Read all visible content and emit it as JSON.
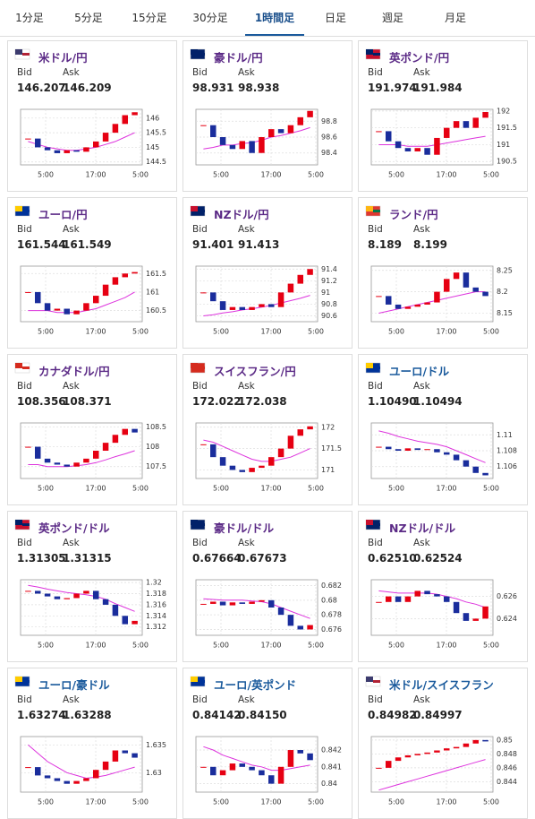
{
  "tabs": [
    "1分足",
    "5分足",
    "15分足",
    "30分足",
    "1時間足",
    "日足",
    "週足",
    "月足"
  ],
  "active_tab": 4,
  "bid_label": "Bid",
  "ask_label": "Ask",
  "chart_x_labels": [
    "5:00",
    "17:00",
    "5:00"
  ],
  "up_color": "#e60012",
  "down_color": "#1a2d9c",
  "ma_color": "#dd33dd",
  "cards": [
    {
      "pair": "米ドル/円",
      "title_color": "#5b2a86",
      "bid": "146.207",
      "ask": "146.209",
      "ylim": [
        144.4,
        146.3
      ],
      "yticks": [
        144.5,
        145,
        145.5,
        146
      ],
      "closes": [
        145.3,
        145.0,
        144.9,
        144.8,
        144.9,
        144.85,
        145.0,
        145.2,
        145.5,
        145.8,
        146.1,
        146.2
      ],
      "ma": [
        145.2,
        145.1,
        145.0,
        144.95,
        144.9,
        144.9,
        144.95,
        145.0,
        145.1,
        145.2,
        145.35,
        145.5
      ]
    },
    {
      "pair": "豪ドル/円",
      "title_color": "#5b2a86",
      "bid": "98.931",
      "ask": "98.938",
      "ylim": [
        98.25,
        98.95
      ],
      "yticks": [
        98.4,
        98.6,
        98.8
      ],
      "closes": [
        98.75,
        98.6,
        98.5,
        98.45,
        98.55,
        98.4,
        98.6,
        98.7,
        98.65,
        98.75,
        98.85,
        98.93
      ],
      "ma": [
        98.45,
        98.47,
        98.5,
        98.5,
        98.52,
        98.53,
        98.56,
        98.6,
        98.62,
        98.65,
        98.68,
        98.72
      ]
    },
    {
      "pair": "英ポンド/円",
      "title_color": "#5b2a86",
      "bid": "191.974",
      "ask": "191.984",
      "ylim": [
        190.4,
        192.05
      ],
      "yticks": [
        190.5,
        191,
        191.5,
        192
      ],
      "closes": [
        191.4,
        191.1,
        190.9,
        190.8,
        190.9,
        190.7,
        191.2,
        191.5,
        191.7,
        191.5,
        191.8,
        191.97
      ],
      "ma": [
        191.0,
        191.0,
        191.0,
        190.95,
        190.95,
        190.95,
        191.0,
        191.05,
        191.1,
        191.15,
        191.2,
        191.25
      ]
    },
    {
      "pair": "ユーロ/円",
      "title_color": "#5b2a86",
      "bid": "161.544",
      "ask": "161.549",
      "ylim": [
        160.2,
        161.7
      ],
      "yticks": [
        160.5,
        161,
        161.5
      ],
      "closes": [
        161.0,
        160.7,
        160.5,
        160.55,
        160.4,
        160.5,
        160.7,
        160.9,
        161.2,
        161.4,
        161.5,
        161.54
      ],
      "ma": [
        160.5,
        160.5,
        160.5,
        160.45,
        160.45,
        160.45,
        160.5,
        160.55,
        160.65,
        160.75,
        160.85,
        161.0
      ]
    },
    {
      "pair": "NZドル/円",
      "title_color": "#5b2a86",
      "bid": "91.401",
      "ask": "91.413",
      "ylim": [
        90.5,
        91.45
      ],
      "yticks": [
        90.6,
        90.8,
        91,
        91.2,
        91.4
      ],
      "closes": [
        91.0,
        90.85,
        90.7,
        90.75,
        90.7,
        90.75,
        90.8,
        90.75,
        91.0,
        91.15,
        91.3,
        91.4
      ],
      "ma": [
        90.6,
        90.62,
        90.65,
        90.67,
        90.7,
        90.72,
        90.75,
        90.78,
        90.82,
        90.86,
        90.9,
        90.95
      ]
    },
    {
      "pair": "ランド/円",
      "title_color": "#5b2a86",
      "bid": "8.189",
      "ask": "8.199",
      "ylim": [
        8.13,
        8.26
      ],
      "yticks": [
        8.15,
        8.2,
        8.25
      ],
      "closes": [
        8.19,
        8.17,
        8.16,
        8.165,
        8.17,
        8.175,
        8.2,
        8.23,
        8.245,
        8.21,
        8.2,
        8.19
      ],
      "ma": [
        8.15,
        8.155,
        8.16,
        8.165,
        8.17,
        8.175,
        8.18,
        8.185,
        8.19,
        8.195,
        8.2,
        8.2
      ]
    },
    {
      "pair": "カナダドル/円",
      "title_color": "#5b2a86",
      "bid": "108.356",
      "ask": "108.371",
      "ylim": [
        107.2,
        108.6
      ],
      "yticks": [
        107.5,
        108,
        108.5
      ],
      "closes": [
        108.0,
        107.7,
        107.6,
        107.55,
        107.5,
        107.6,
        107.7,
        107.9,
        108.1,
        108.3,
        108.45,
        108.36
      ],
      "ma": [
        107.55,
        107.55,
        107.5,
        107.5,
        107.5,
        107.52,
        107.55,
        107.6,
        107.67,
        107.75,
        107.82,
        107.9
      ]
    },
    {
      "pair": "スイスフラン/円",
      "title_color": "#5b2a86",
      "bid": "172.022",
      "ask": "172.038",
      "ylim": [
        170.8,
        172.1
      ],
      "yticks": [
        171,
        171.5,
        172
      ],
      "closes": [
        171.6,
        171.3,
        171.1,
        171.0,
        170.95,
        171.05,
        171.1,
        171.3,
        171.5,
        171.8,
        171.95,
        172.02
      ],
      "ma": [
        171.7,
        171.65,
        171.55,
        171.45,
        171.35,
        171.25,
        171.2,
        171.2,
        171.25,
        171.3,
        171.4,
        171.5
      ]
    },
    {
      "pair": "ユーロ/ドル",
      "title_color": "#1a5a9c",
      "bid": "1.10490",
      "ask": "1.10494",
      "ylim": [
        1.1045,
        1.1115
      ],
      "yticks": [
        1.106,
        1.108,
        1.11
      ],
      "closes": [
        1.1085,
        1.1082,
        1.108,
        1.1083,
        1.1081,
        1.1082,
        1.1078,
        1.1075,
        1.1068,
        1.106,
        1.1052,
        1.1049
      ],
      "ma": [
        1.1105,
        1.1102,
        1.1098,
        1.1095,
        1.1092,
        1.109,
        1.1088,
        1.1085,
        1.108,
        1.1075,
        1.107,
        1.1065
      ]
    },
    {
      "pair": "英ポンド/ドル",
      "title_color": "#5b2a86",
      "bid": "1.31305",
      "ask": "1.31315",
      "ylim": [
        1.3105,
        1.3205
      ],
      "yticks": [
        1.312,
        1.314,
        1.316,
        1.318,
        1.32
      ],
      "closes": [
        1.3185,
        1.318,
        1.3175,
        1.317,
        1.3172,
        1.318,
        1.3185,
        1.317,
        1.316,
        1.314,
        1.3125,
        1.3131
      ],
      "ma": [
        1.3195,
        1.3192,
        1.3188,
        1.3185,
        1.3182,
        1.318,
        1.3178,
        1.3175,
        1.317,
        1.3162,
        1.3155,
        1.3148
      ]
    },
    {
      "pair": "豪ドル/ドル",
      "title_color": "#5b2a86",
      "bid": "0.67664",
      "ask": "0.67673",
      "ylim": [
        0.6752,
        0.6828
      ],
      "yticks": [
        0.676,
        0.678,
        0.68,
        0.682
      ],
      "closes": [
        0.6795,
        0.6798,
        0.6793,
        0.6797,
        0.6795,
        0.6798,
        0.68,
        0.679,
        0.678,
        0.6765,
        0.676,
        0.6766
      ],
      "ma": [
        0.6802,
        0.6801,
        0.68,
        0.68,
        0.68,
        0.6799,
        0.6798,
        0.6795,
        0.679,
        0.6785,
        0.678,
        0.6775
      ]
    },
    {
      "pair": "NZドル/ドル",
      "title_color": "#5b2a86",
      "bid": "0.62510",
      "ask": "0.62524",
      "ylim": [
        0.6225,
        0.6275
      ],
      "yticks": [
        0.624,
        0.626
      ],
      "closes": [
        0.6255,
        0.626,
        0.6255,
        0.626,
        0.6265,
        0.6262,
        0.626,
        0.6255,
        0.6245,
        0.6238,
        0.624,
        0.6251
      ],
      "ma": [
        0.6265,
        0.6264,
        0.6263,
        0.6263,
        0.6263,
        0.6263,
        0.6262,
        0.626,
        0.6258,
        0.6255,
        0.6253,
        0.625
      ]
    },
    {
      "pair": "ユーロ/豪ドル",
      "title_color": "#1a5a9c",
      "bid": "1.63274",
      "ask": "1.63288",
      "ylim": [
        1.6265,
        1.6365
      ],
      "yticks": [
        1.63,
        1.635
      ],
      "closes": [
        1.631,
        1.6295,
        1.629,
        1.6285,
        1.628,
        1.6285,
        1.629,
        1.6305,
        1.632,
        1.634,
        1.6335,
        1.6327
      ],
      "ma": [
        1.635,
        1.6335,
        1.632,
        1.631,
        1.63,
        1.6295,
        1.629,
        1.6292,
        1.6295,
        1.63,
        1.6305,
        1.631
      ]
    },
    {
      "pair": "ユーロ/英ポンド",
      "title_color": "#1a5a9c",
      "bid": "0.84142",
      "ask": "0.84150",
      "ylim": [
        0.8395,
        0.8428
      ],
      "yticks": [
        0.84,
        0.841,
        0.842
      ],
      "closes": [
        0.841,
        0.8405,
        0.8408,
        0.8412,
        0.841,
        0.8408,
        0.8405,
        0.84,
        0.841,
        0.842,
        0.8418,
        0.8414
      ],
      "ma": [
        0.8422,
        0.842,
        0.8417,
        0.8415,
        0.8413,
        0.8411,
        0.841,
        0.8408,
        0.8408,
        0.8409,
        0.841,
        0.8411
      ]
    },
    {
      "pair": "米ドル/スイスフラン",
      "title_color": "#1a5a9c",
      "bid": "0.84982",
      "ask": "0.84997",
      "ylim": [
        0.8425,
        0.8505
      ],
      "yticks": [
        0.844,
        0.846,
        0.848,
        0.85
      ],
      "closes": [
        0.846,
        0.847,
        0.8475,
        0.8478,
        0.848,
        0.8482,
        0.8485,
        0.8488,
        0.849,
        0.8495,
        0.85,
        0.8498
      ],
      "ma": [
        0.8428,
        0.8432,
        0.8436,
        0.844,
        0.8444,
        0.8448,
        0.8452,
        0.8456,
        0.846,
        0.8464,
        0.8468,
        0.8472
      ]
    }
  ]
}
